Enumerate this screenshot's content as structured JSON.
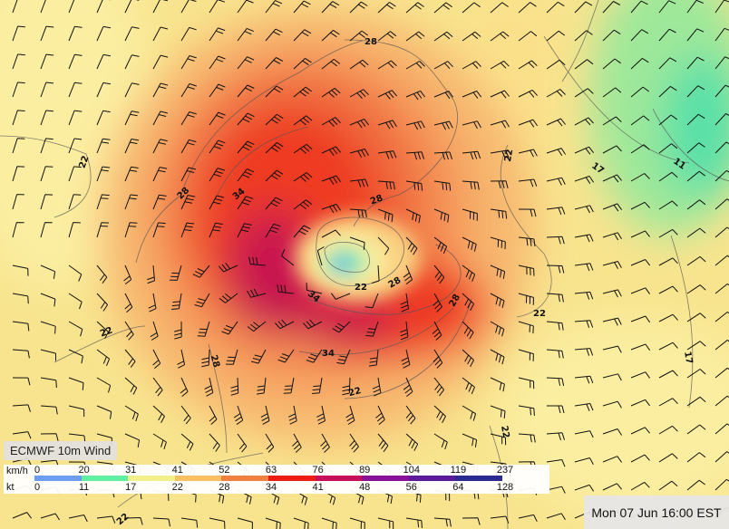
{
  "title": "ECMWF 10m Wind",
  "timestamp": "Mon 07 Jun 16:00 EST",
  "legend": {
    "kmh_label": "km/h",
    "kt_label": "kt",
    "kmh_ticks": [
      "0",
      "20",
      "31",
      "41",
      "52",
      "63",
      "76",
      "89",
      "104",
      "119",
      "237"
    ],
    "kt_ticks": [
      "0",
      "11",
      "17",
      "22",
      "28",
      "34",
      "41",
      "48",
      "56",
      "64",
      "128"
    ],
    "colors": [
      "#6b9df2",
      "#5ef0a0",
      "#f2f08a",
      "#f7c060",
      "#f08040",
      "#ee1c12",
      "#c8105a",
      "#8a109a",
      "#5a1a9a",
      "#2a2a90"
    ]
  },
  "contour_labels": [
    "28",
    "22",
    "28",
    "34",
    "22",
    "17",
    "11",
    "28",
    "22",
    "28",
    "34",
    "28",
    "22",
    "22",
    "34",
    "28",
    "22",
    "17",
    "22",
    "22"
  ]
}
